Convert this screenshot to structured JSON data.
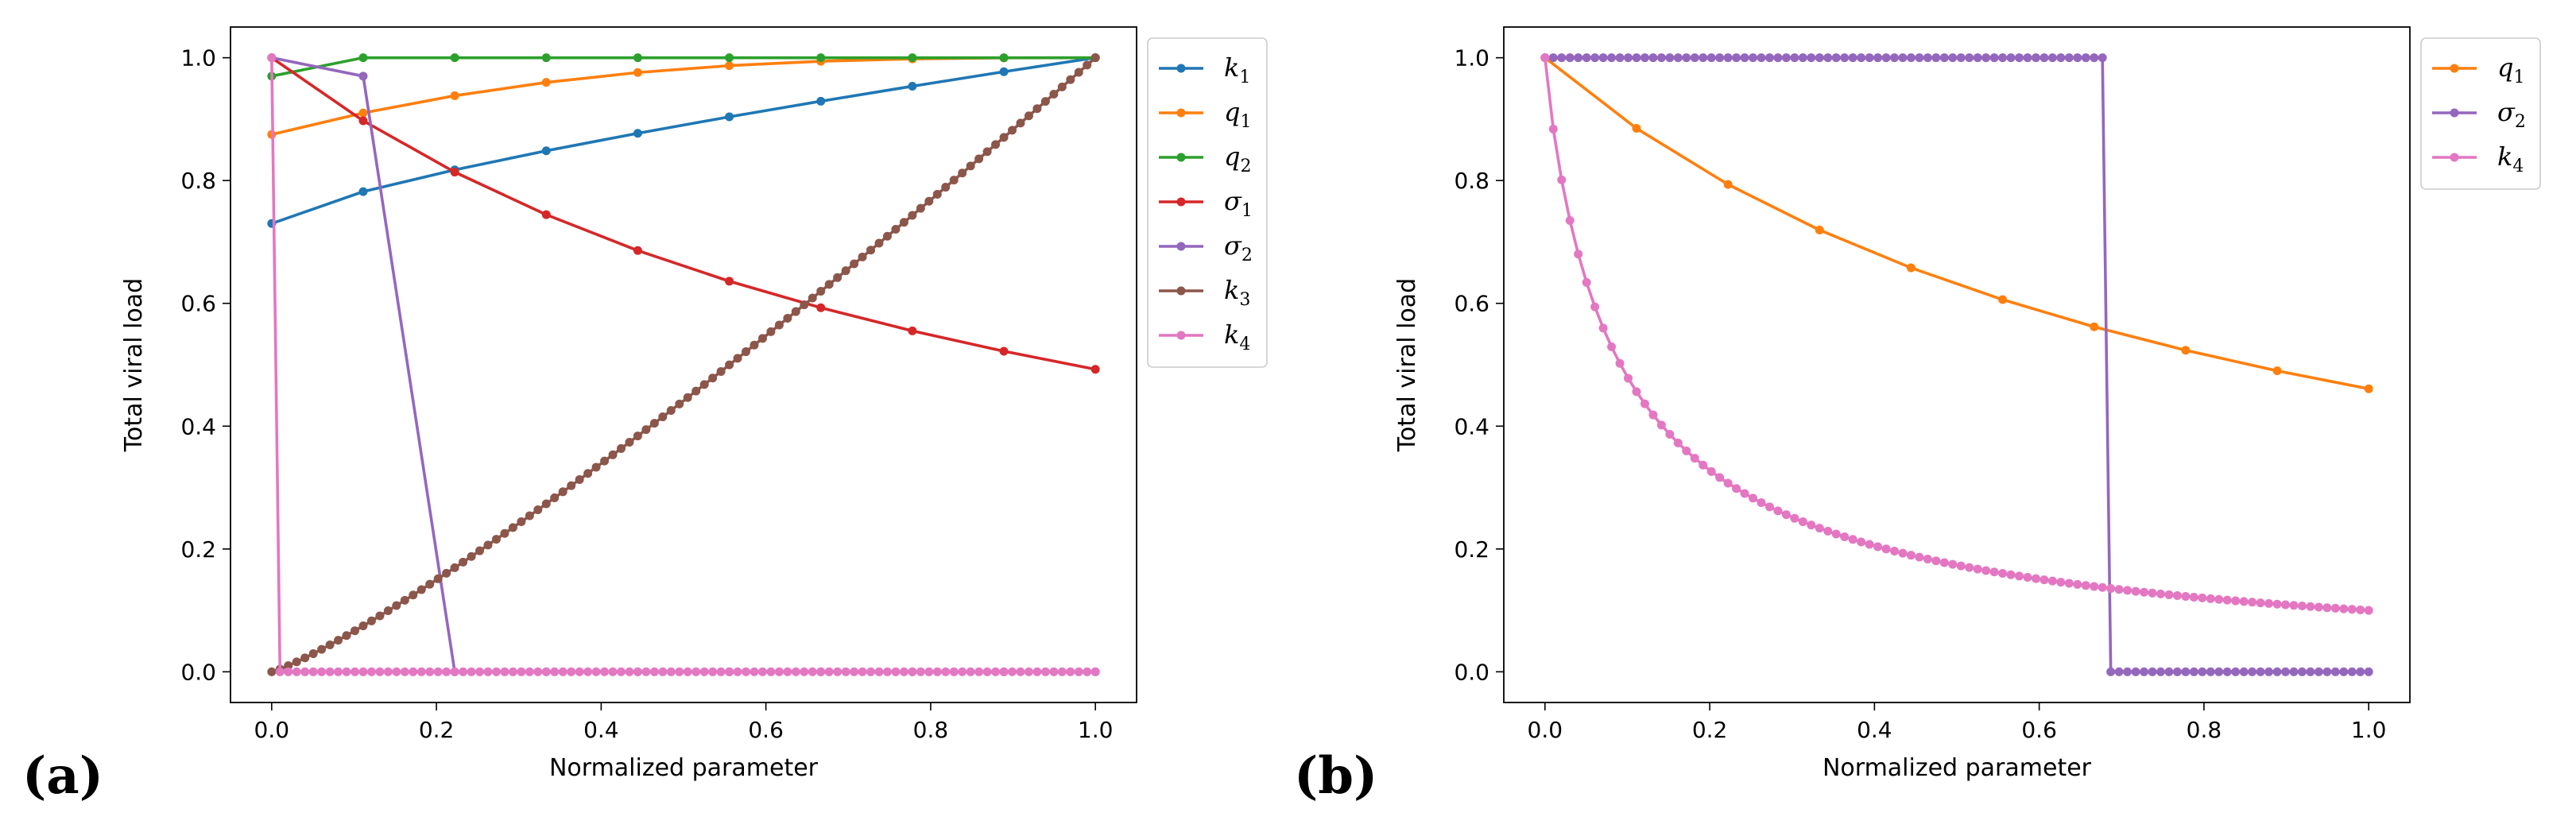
{
  "chart_data": [
    {
      "type": "line",
      "panel_label": "(a)",
      "xlabel": "Normalized parameter",
      "ylabel": "Total viral load",
      "xlim": [
        -0.05,
        1.05
      ],
      "ylim": [
        -0.05,
        1.05
      ],
      "xticks": [
        0.0,
        0.2,
        0.4,
        0.6,
        0.8,
        1.0
      ],
      "xtick_labels": [
        "0.0",
        "0.2",
        "0.4",
        "0.6",
        "0.8",
        "1.0"
      ],
      "yticks": [
        0.0,
        0.2,
        0.4,
        0.6,
        0.8,
        1.0
      ],
      "ytick_labels": [
        "0.0",
        "0.2",
        "0.4",
        "0.6",
        "0.8",
        "1.0"
      ],
      "legend_position": "outside-right-top",
      "series": [
        {
          "name": "k1",
          "label_base": "k",
          "label_sub": "1",
          "color": "#1f77b4",
          "generator": "k1_a"
        },
        {
          "name": "q1",
          "label_base": "q",
          "label_sub": "1",
          "color": "#ff7f0e",
          "generator": "q1_a"
        },
        {
          "name": "q2",
          "label_base": "q",
          "label_sub": "2",
          "color": "#2ca02c",
          "generator": "q2_a"
        },
        {
          "name": "sigma1",
          "label_base": "σ",
          "label_sub": "1",
          "color": "#d62728",
          "generator": "sigma1_a"
        },
        {
          "name": "sigma2",
          "label_base": "σ",
          "label_sub": "2",
          "color": "#9467bd",
          "generator": "sigma2_a"
        },
        {
          "name": "k3",
          "label_base": "k",
          "label_sub": "3",
          "color": "#8c564b",
          "generator": "k3_a"
        },
        {
          "name": "k4",
          "label_base": "k",
          "label_sub": "4",
          "color": "#e377c2",
          "generator": "k4_a"
        }
      ]
    },
    {
      "type": "line",
      "panel_label": "(b)",
      "xlabel": "Normalized parameter",
      "ylabel": "Total viral load",
      "xlim": [
        -0.05,
        1.05
      ],
      "ylim": [
        -0.05,
        1.05
      ],
      "xticks": [
        0.0,
        0.2,
        0.4,
        0.6,
        0.8,
        1.0
      ],
      "xtick_labels": [
        "0.0",
        "0.2",
        "0.4",
        "0.6",
        "0.8",
        "1.0"
      ],
      "yticks": [
        0.0,
        0.2,
        0.4,
        0.6,
        0.8,
        1.0
      ],
      "ytick_labels": [
        "0.0",
        "0.2",
        "0.4",
        "0.6",
        "0.8",
        "1.0"
      ],
      "legend_position": "outside-right-top",
      "series": [
        {
          "name": "q1",
          "label_base": "q",
          "label_sub": "1",
          "color": "#ff7f0e",
          "generator": "q1_b"
        },
        {
          "name": "sigma2",
          "label_base": "σ",
          "label_sub": "2",
          "color": "#9467bd",
          "generator": "sigma2_b"
        },
        {
          "name": "k4",
          "label_base": "k",
          "label_sub": "4",
          "color": "#e377c2",
          "generator": "k4_b"
        }
      ]
    }
  ]
}
